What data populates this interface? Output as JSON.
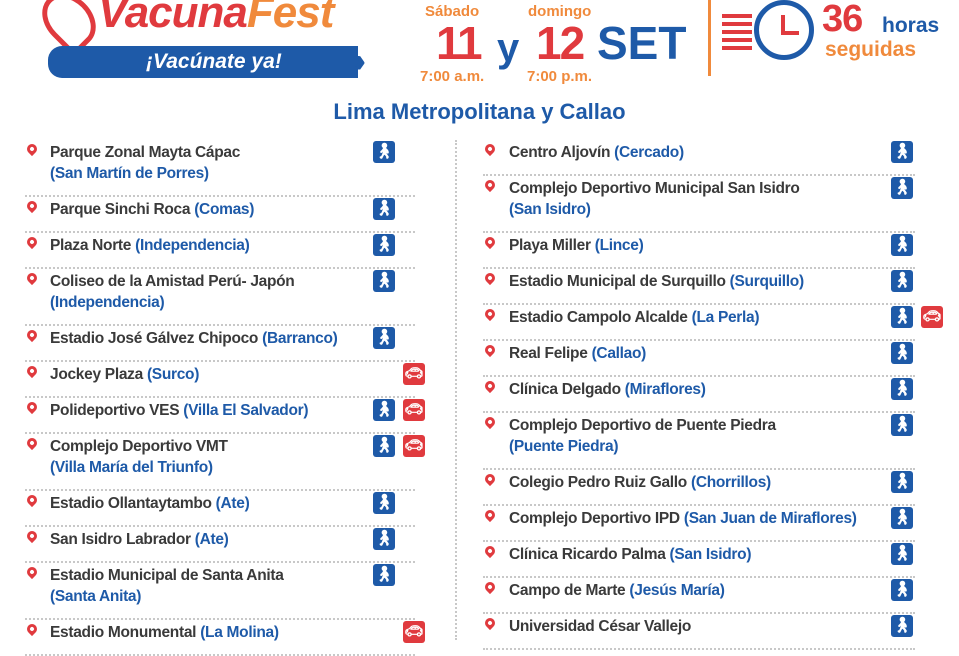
{
  "header": {
    "logo_part1": "Vacuna",
    "logo_part2": "Fest",
    "slogan": "¡Vacúnate ya!",
    "day1_name": "Sábado",
    "day1_num": "11",
    "day1_time": "7:00 a.m.",
    "conj": "y",
    "day2_name": "domingo",
    "day2_num": "12",
    "day2_time": "7:00 p.m.",
    "month": "SET",
    "hours_num": "36",
    "hours_label": "horas",
    "hours_sub": "seguidas"
  },
  "subtitle": "Lima Metropolitana y Callao",
  "colors": {
    "blue": "#1e5aa8",
    "red": "#e03a3e",
    "orange": "#f08a3c"
  },
  "legend_icons": {
    "walk": "walk-in (pedestrian)",
    "car": "drive-through (car)"
  },
  "left": [
    {
      "name": "Parque Zonal Mayta Cápac",
      "district": "(San Martín de Porres)",
      "two": true,
      "walk": true,
      "car": false
    },
    {
      "name": "Parque Sinchi Roca",
      "district": "(Comas)",
      "two": false,
      "walk": true,
      "car": false
    },
    {
      "name": "Plaza Norte",
      "district": "(Independencia)",
      "two": false,
      "walk": true,
      "car": false
    },
    {
      "name": "Coliseo de la Amistad Perú- Japón",
      "district": "(Independencia)",
      "two": true,
      "walk": true,
      "car": false
    },
    {
      "name": "Estadio José Gálvez Chipoco",
      "district": "(Barranco)",
      "two": false,
      "walk": true,
      "car": false
    },
    {
      "name": "Jockey Plaza",
      "district": "(Surco)",
      "two": false,
      "walk": false,
      "car": true
    },
    {
      "name": "Polideportivo VES",
      "district": "(Villa El Salvador)",
      "two": false,
      "walk": true,
      "car": true
    },
    {
      "name": "Complejo Deportivo VMT",
      "district": "(Villa María del Triunfo)",
      "two": true,
      "walk": true,
      "car": true
    },
    {
      "name": "Estadio Ollantaytambo",
      "district": "(Ate)",
      "two": false,
      "walk": true,
      "car": false
    },
    {
      "name": "San Isidro Labrador",
      "district": "(Ate)",
      "two": false,
      "walk": true,
      "car": false
    },
    {
      "name": "Estadio Municipal de Santa Anita",
      "district": "(Santa Anita)",
      "two": true,
      "walk": true,
      "car": false
    },
    {
      "name": "Estadio Monumental",
      "district": "(La Molina)",
      "two": false,
      "walk": false,
      "car": true
    }
  ],
  "right": [
    {
      "name": "Centro Aljovín",
      "district": "(Cercado)",
      "two": false,
      "walk": true,
      "car": false
    },
    {
      "name": "Complejo Deportivo Municipal San Isidro",
      "district": "(San Isidro)",
      "two": true,
      "walk": true,
      "car": false
    },
    {
      "name": "Playa Miller",
      "district": "(Lince)",
      "two": false,
      "walk": true,
      "car": false
    },
    {
      "name": "Estadio Municipal de Surquillo",
      "district": "(Surquillo)",
      "two": false,
      "walk": true,
      "car": false
    },
    {
      "name": "Estadio Campolo Alcalde",
      "district": "(La Perla)",
      "two": false,
      "walk": true,
      "car": true
    },
    {
      "name": "Real Felipe",
      "district": "(Callao)",
      "two": false,
      "walk": true,
      "car": false
    },
    {
      "name": "Clínica Delgado",
      "district": "(Miraflores)",
      "two": false,
      "walk": true,
      "car": false
    },
    {
      "name": "Complejo Deportivo de Puente Piedra",
      "district": "(Puente Piedra)",
      "two": true,
      "walk": true,
      "car": false
    },
    {
      "name": "Colegio Pedro Ruiz Gallo",
      "district": "(Chorrillos)",
      "two": false,
      "walk": true,
      "car": false
    },
    {
      "name": "Complejo Deportivo IPD",
      "district": "(San Juan de Miraflores)",
      "two": false,
      "walk": true,
      "car": false
    },
    {
      "name": "Clínica Ricardo Palma",
      "district": "(San Isidro)",
      "two": false,
      "walk": true,
      "car": false
    },
    {
      "name": "Campo de Marte",
      "district": "(Jesús María)",
      "two": false,
      "walk": true,
      "car": false
    },
    {
      "name": "Universidad César Vallejo",
      "district": "",
      "two": false,
      "walk": true,
      "car": false
    }
  ]
}
